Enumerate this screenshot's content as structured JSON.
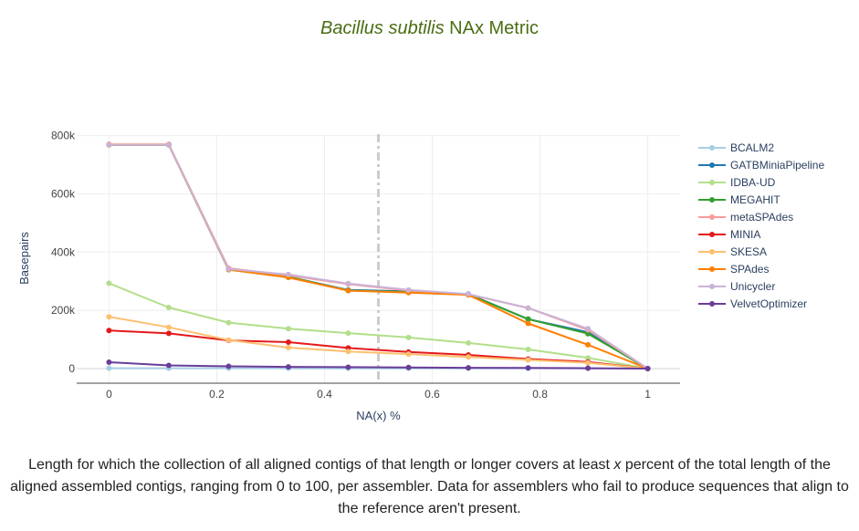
{
  "title": {
    "italic": "Bacillus subtilis",
    "rest": " NAx Metric"
  },
  "caption": {
    "part1": "Length for which the collection of all aligned contigs of that length or longer covers at least ",
    "italic": "x",
    "part2": " percent of the total length of the aligned assembled contigs, ranging from 0 to 100, per assembler. Data for assemblers who fail to produce sequences that align to the reference aren't present."
  },
  "chart_data": {
    "type": "line",
    "xlabel": "NA(x) %",
    "ylabel": "Basepairs",
    "xlim": [
      -0.06,
      1.06
    ],
    "ylim": [
      -50000,
      830000
    ],
    "xticks": [
      0,
      0.2,
      0.4,
      0.6,
      0.8,
      1
    ],
    "xtick_labels": [
      "0",
      "0.2",
      "0.4",
      "0.6",
      "0.8",
      "1"
    ],
    "yticks": [
      0,
      200000,
      400000,
      600000,
      800000
    ],
    "ytick_labels": [
      "0",
      "200k",
      "400k",
      "600k",
      "800k"
    ],
    "grid": true,
    "vline": {
      "x": 0.5,
      "style": "dash-dot",
      "color": "#cccccc"
    },
    "legend_position": "right",
    "x": [
      0,
      0.111,
      0.222,
      0.333,
      0.444,
      0.556,
      0.667,
      0.778,
      0.889,
      1
    ],
    "series": [
      {
        "name": "BCALM2",
        "color": "#a6cee3",
        "values": [
          1500,
          1400,
          1300,
          1200,
          1100,
          1000,
          900,
          800,
          700,
          0
        ]
      },
      {
        "name": "GATBMiniaPipeline",
        "color": "#1f78b4",
        "values": [
          768000,
          768000,
          340000,
          315000,
          270000,
          265000,
          256000,
          170000,
          125000,
          0
        ]
      },
      {
        "name": "IDBA-UD",
        "color": "#b2df8a",
        "values": [
          293000,
          210000,
          158000,
          137000,
          122000,
          107000,
          88000,
          66000,
          37000,
          0
        ]
      },
      {
        "name": "MEGAHIT",
        "color": "#33a02c",
        "values": [
          768000,
          768000,
          340000,
          315000,
          268000,
          263000,
          255000,
          170000,
          120000,
          0
        ]
      },
      {
        "name": "metaSPAdes",
        "color": "#fb9a99",
        "values": [
          770000,
          770000,
          345000,
          320000,
          290000,
          268000,
          255000,
          208000,
          133000,
          0
        ]
      },
      {
        "name": "MINIA",
        "color": "#e31a1c",
        "values": [
          131000,
          121000,
          97000,
          91000,
          71000,
          57000,
          47000,
          33000,
          23000,
          0
        ]
      },
      {
        "name": "SKESA",
        "color": "#fdbf6f",
        "values": [
          178000,
          142000,
          98000,
          72000,
          59000,
          50000,
          40000,
          30000,
          20000,
          0
        ]
      },
      {
        "name": "SPAdes",
        "color": "#ff7f00",
        "values": [
          768000,
          768000,
          340000,
          313000,
          268000,
          261000,
          253000,
          155000,
          82000,
          0
        ]
      },
      {
        "name": "Unicycler",
        "color": "#cab2d6",
        "values": [
          768000,
          768000,
          342000,
          323000,
          292000,
          270000,
          256000,
          208000,
          137000,
          0
        ]
      },
      {
        "name": "VelvetOptimizer",
        "color": "#6a3d9a",
        "values": [
          22000,
          11000,
          8000,
          6000,
          5000,
          4000,
          3000,
          2500,
          1500,
          0
        ]
      }
    ]
  }
}
